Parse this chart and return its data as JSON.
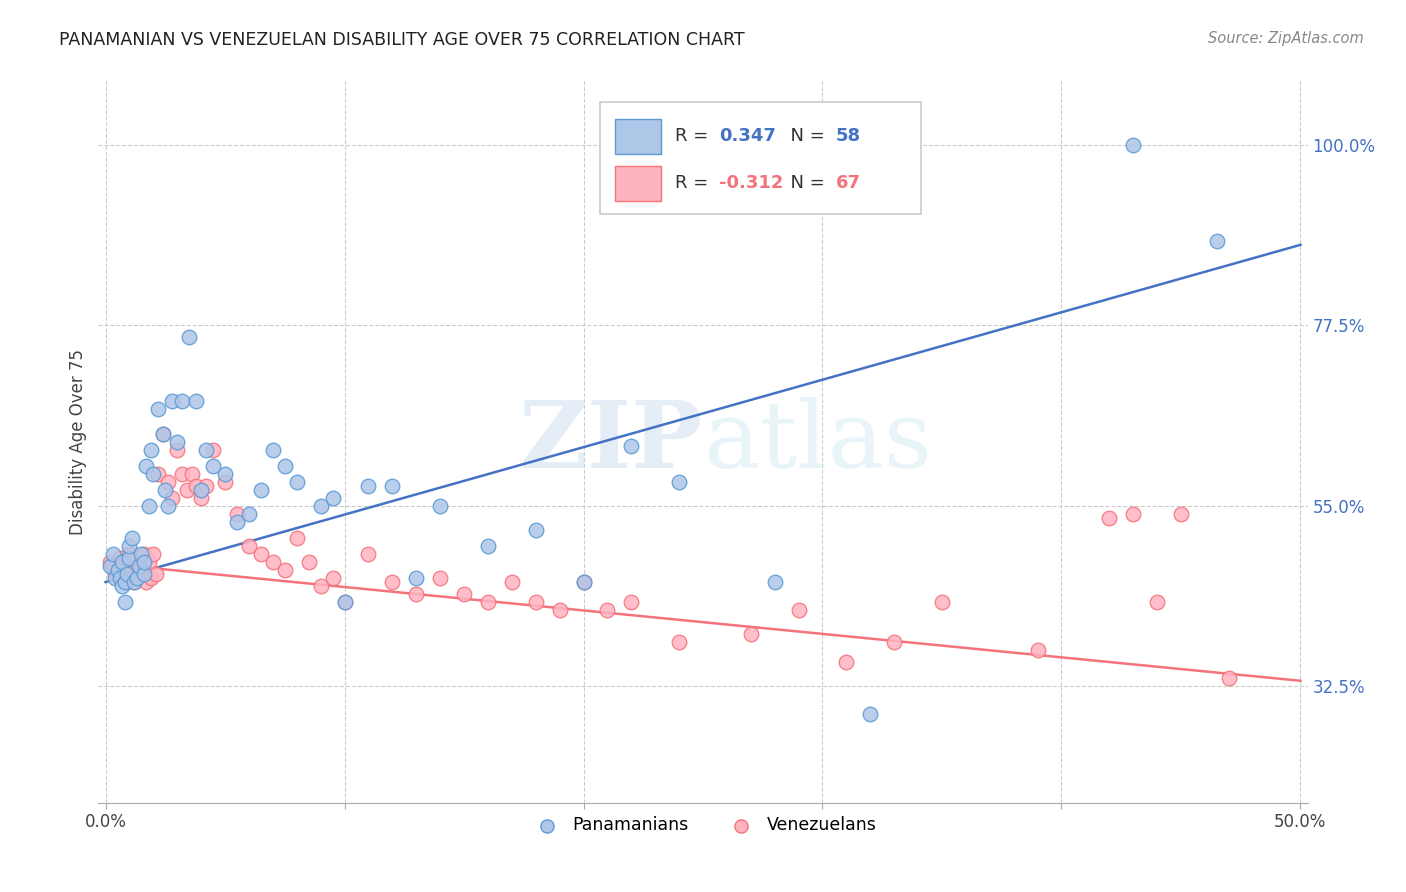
{
  "title": "PANAMANIAN VS VENEZUELAN DISABILITY AGE OVER 75 CORRELATION CHART",
  "source": "Source: ZipAtlas.com",
  "ylabel": "Disability Age Over 75",
  "xlim_min": -0.003,
  "xlim_max": 0.503,
  "ylim_min": 0.18,
  "ylim_max": 1.08,
  "xtick_vals": [
    0.0,
    0.1,
    0.2,
    0.3,
    0.4,
    0.5
  ],
  "xticklabels": [
    "0.0%",
    "",
    "",
    "",
    "",
    "50.0%"
  ],
  "ytick_positions": [
    0.325,
    0.55,
    0.775,
    1.0
  ],
  "ytick_labels_right": [
    "32.5%",
    "55.0%",
    "77.5%",
    "100.0%"
  ],
  "panama_R": 0.347,
  "panama_N": 58,
  "venezuela_R": -0.312,
  "venezuela_N": 67,
  "panama_color": "#aec6e8",
  "panama_edge": "#5b9bd5",
  "venezuela_color": "#ffb3c1",
  "venezuela_edge": "#f4737a",
  "line_blue": "#4472c4",
  "line_pink": "#f4737a",
  "blue_line_x0": 0.0,
  "blue_line_y0": 0.455,
  "blue_line_x1": 0.5,
  "blue_line_y1": 0.875,
  "pink_line_x0": 0.0,
  "pink_line_y0": 0.478,
  "pink_line_x1": 0.5,
  "pink_line_y1": 0.332,
  "panama_x": [
    0.002,
    0.003,
    0.004,
    0.005,
    0.006,
    0.007,
    0.007,
    0.008,
    0.008,
    0.009,
    0.01,
    0.01,
    0.011,
    0.012,
    0.013,
    0.014,
    0.015,
    0.016,
    0.016,
    0.017,
    0.018,
    0.019,
    0.02,
    0.022,
    0.024,
    0.025,
    0.026,
    0.028,
    0.03,
    0.032,
    0.035,
    0.038,
    0.04,
    0.042,
    0.045,
    0.05,
    0.055,
    0.06,
    0.065,
    0.07,
    0.075,
    0.08,
    0.09,
    0.095,
    0.1,
    0.11,
    0.12,
    0.13,
    0.14,
    0.16,
    0.18,
    0.2,
    0.22,
    0.24,
    0.28,
    0.32,
    0.43,
    0.465
  ],
  "panama_y": [
    0.475,
    0.49,
    0.46,
    0.47,
    0.46,
    0.45,
    0.48,
    0.455,
    0.43,
    0.465,
    0.485,
    0.5,
    0.51,
    0.455,
    0.46,
    0.475,
    0.49,
    0.465,
    0.48,
    0.6,
    0.55,
    0.62,
    0.59,
    0.67,
    0.64,
    0.57,
    0.55,
    0.68,
    0.63,
    0.68,
    0.76,
    0.68,
    0.57,
    0.62,
    0.6,
    0.59,
    0.53,
    0.54,
    0.57,
    0.62,
    0.6,
    0.58,
    0.55,
    0.56,
    0.43,
    0.575,
    0.575,
    0.46,
    0.55,
    0.5,
    0.52,
    0.455,
    0.625,
    0.58,
    0.455,
    0.29,
    1.0,
    0.88
  ],
  "venezuela_x": [
    0.002,
    0.003,
    0.004,
    0.005,
    0.006,
    0.007,
    0.008,
    0.009,
    0.01,
    0.011,
    0.012,
    0.013,
    0.014,
    0.015,
    0.016,
    0.017,
    0.018,
    0.019,
    0.02,
    0.021,
    0.022,
    0.024,
    0.026,
    0.028,
    0.03,
    0.032,
    0.034,
    0.036,
    0.038,
    0.04,
    0.042,
    0.045,
    0.05,
    0.055,
    0.06,
    0.065,
    0.07,
    0.075,
    0.08,
    0.085,
    0.09,
    0.095,
    0.1,
    0.11,
    0.12,
    0.13,
    0.14,
    0.15,
    0.16,
    0.17,
    0.18,
    0.19,
    0.2,
    0.21,
    0.22,
    0.24,
    0.27,
    0.29,
    0.31,
    0.33,
    0.35,
    0.39,
    0.42,
    0.43,
    0.44,
    0.45,
    0.47
  ],
  "venezuela_y": [
    0.48,
    0.475,
    0.465,
    0.47,
    0.485,
    0.46,
    0.475,
    0.455,
    0.49,
    0.46,
    0.455,
    0.475,
    0.465,
    0.48,
    0.49,
    0.455,
    0.48,
    0.46,
    0.49,
    0.465,
    0.59,
    0.64,
    0.58,
    0.56,
    0.62,
    0.59,
    0.57,
    0.59,
    0.575,
    0.56,
    0.575,
    0.62,
    0.58,
    0.54,
    0.5,
    0.49,
    0.48,
    0.47,
    0.51,
    0.48,
    0.45,
    0.46,
    0.43,
    0.49,
    0.455,
    0.44,
    0.46,
    0.44,
    0.43,
    0.455,
    0.43,
    0.42,
    0.455,
    0.42,
    0.43,
    0.38,
    0.39,
    0.42,
    0.355,
    0.38,
    0.43,
    0.37,
    0.535,
    0.54,
    0.43,
    0.54,
    0.335
  ]
}
